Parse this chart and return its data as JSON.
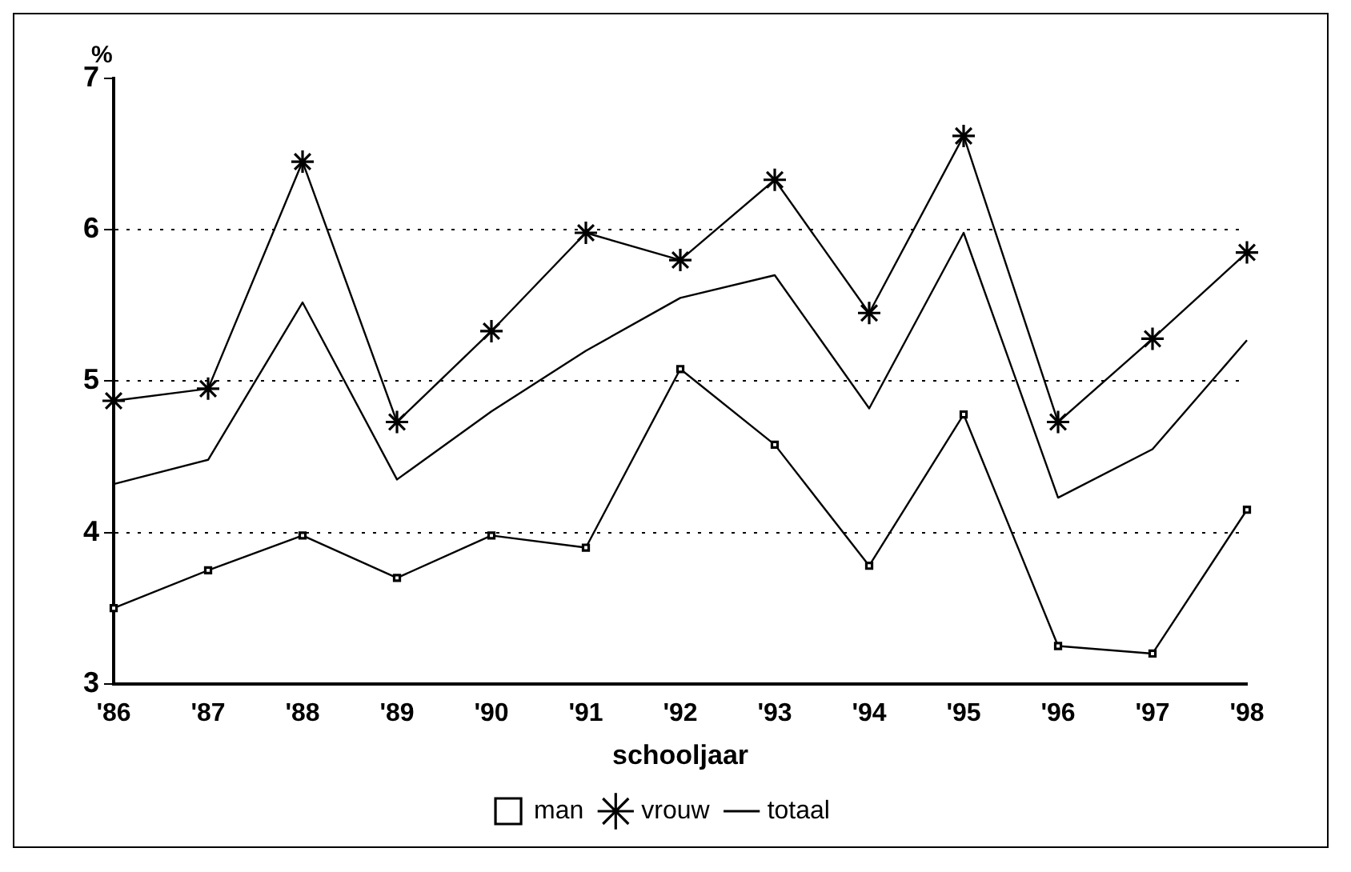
{
  "chart_data": {
    "type": "line",
    "ylabel": "%",
    "xlabel": "schooljaar",
    "categories": [
      "'86",
      "'87",
      "'88",
      "'89",
      "'90",
      "'91",
      "'92",
      "'93",
      "'94",
      "'95",
      "'96",
      "'97",
      "'98"
    ],
    "series": [
      {
        "name": "man",
        "color": "#000000",
        "marker": "square",
        "values": [
          3.5,
          3.75,
          3.98,
          3.7,
          3.98,
          3.9,
          5.08,
          4.58,
          3.78,
          4.78,
          3.25,
          3.2,
          4.15
        ]
      },
      {
        "name": "vrouw",
        "color": "#000000",
        "marker": "star",
        "values": [
          4.87,
          4.95,
          6.45,
          4.73,
          5.33,
          5.98,
          5.8,
          6.33,
          5.45,
          6.62,
          4.73,
          5.28,
          5.85
        ]
      },
      {
        "name": "totaal",
        "color": "#000000",
        "marker": "none",
        "values": [
          4.32,
          4.48,
          5.52,
          4.35,
          4.8,
          5.2,
          5.55,
          5.7,
          4.82,
          5.98,
          4.23,
          4.55,
          5.27
        ]
      }
    ],
    "ylim": [
      3,
      7
    ],
    "yticks": [
      3,
      4,
      5,
      6,
      7
    ],
    "grid": "y",
    "legend": "bottom",
    "line_style": "solid"
  }
}
